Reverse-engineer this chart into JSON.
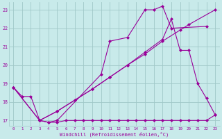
{
  "bg_color": "#c8eaea",
  "grid_color": "#a0c8c8",
  "line_color": "#990099",
  "marker": "D",
  "markersize": 2,
  "linewidth": 0.8,
  "xlim": [
    -0.5,
    23.5
  ],
  "ylim": [
    16.7,
    23.4
  ],
  "yticks": [
    17,
    18,
    19,
    20,
    21,
    22,
    23
  ],
  "xticks": [
    0,
    1,
    2,
    3,
    4,
    5,
    6,
    7,
    8,
    9,
    10,
    11,
    12,
    13,
    14,
    15,
    16,
    17,
    18,
    19,
    20,
    21,
    22,
    23
  ],
  "xlabel": "Windchill (Refroidissement éolien,°C)",
  "series": [
    {
      "x": [
        0,
        1,
        2,
        3,
        4,
        5,
        6,
        7,
        8,
        9,
        10,
        11,
        12,
        13,
        14,
        15,
        16,
        17,
        18,
        19,
        20,
        21,
        22,
        23
      ],
      "y": [
        18.8,
        18.3,
        18.3,
        17.0,
        16.9,
        16.9,
        17.0,
        17.0,
        17.0,
        17.0,
        17.0,
        17.0,
        17.0,
        17.0,
        17.0,
        17.0,
        17.0,
        17.0,
        17.0,
        17.0,
        17.0,
        17.0,
        17.0,
        17.3
      ]
    },
    {
      "x": [
        0,
        3,
        4,
        5,
        10,
        11,
        13,
        15,
        16,
        17,
        18,
        22
      ],
      "y": [
        18.8,
        17.0,
        16.9,
        17.0,
        19.5,
        21.3,
        21.5,
        23.0,
        23.0,
        23.2,
        22.0,
        22.1
      ]
    },
    {
      "x": [
        0,
        3,
        5,
        7,
        9,
        11,
        13,
        15,
        17,
        19,
        20,
        23
      ],
      "y": [
        18.8,
        17.0,
        17.5,
        18.1,
        18.7,
        19.35,
        20.0,
        20.6,
        21.3,
        21.9,
        22.2,
        23.0
      ]
    },
    {
      "x": [
        3,
        5,
        7,
        9,
        11,
        13,
        15,
        17,
        18,
        19,
        20,
        21,
        22,
        23
      ],
      "y": [
        17.0,
        17.5,
        18.1,
        18.7,
        19.35,
        20.0,
        20.7,
        21.4,
        22.5,
        20.8,
        20.8,
        19.0,
        18.2,
        17.3
      ]
    }
  ]
}
